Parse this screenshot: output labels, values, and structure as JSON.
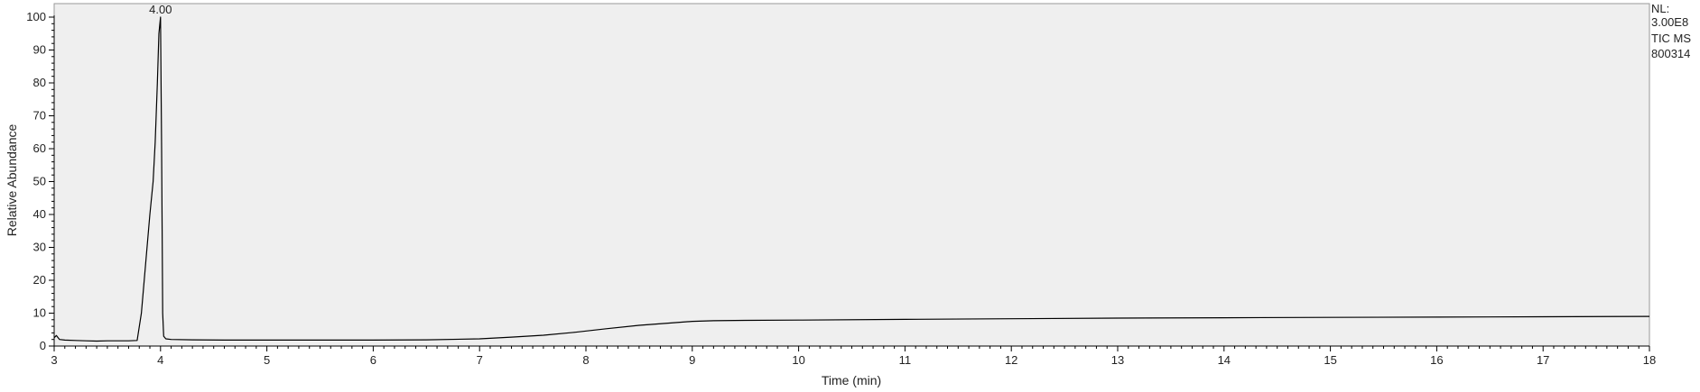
{
  "chart_data": {
    "type": "line",
    "xlabel": "Time (min)",
    "ylabel": "Relative Abundance",
    "xlim": [
      3,
      18
    ],
    "ylim": [
      0,
      100
    ],
    "x_ticks": [
      3,
      4,
      5,
      6,
      7,
      8,
      9,
      10,
      11,
      12,
      13,
      14,
      15,
      16,
      17,
      18
    ],
    "y_ticks": [
      0,
      10,
      20,
      30,
      40,
      50,
      60,
      70,
      80,
      90,
      100
    ],
    "grid": false,
    "colors": {
      "plot_background": "#efefef",
      "trace": "#000000"
    },
    "series": [
      {
        "x": [
          3.0,
          3.02,
          3.05,
          3.1,
          3.2,
          3.3,
          3.4,
          3.5,
          3.6,
          3.7,
          3.78,
          3.82,
          3.86,
          3.9,
          3.93,
          3.95,
          3.97,
          3.985,
          4.0,
          4.01,
          4.02,
          4.03,
          4.05,
          4.1,
          4.3,
          4.6,
          5.0,
          5.5,
          6.0,
          6.5,
          7.0,
          7.3,
          7.6,
          7.9,
          8.2,
          8.5,
          8.8,
          9.0,
          9.2,
          9.5,
          10.0,
          11.0,
          12.0,
          13.0,
          14.0,
          15.0,
          16.0,
          17.0,
          18.0
        ],
        "y": [
          2.5,
          3.2,
          2.0,
          1.8,
          1.7,
          1.6,
          1.5,
          1.6,
          1.6,
          1.6,
          1.7,
          10,
          25,
          40,
          50,
          62,
          80,
          95,
          100,
          60,
          10,
          3,
          2.2,
          2.0,
          1.9,
          1.8,
          1.8,
          1.8,
          1.8,
          1.9,
          2.2,
          2.7,
          3.3,
          4.2,
          5.3,
          6.3,
          7.0,
          7.5,
          7.7,
          7.8,
          7.9,
          8.1,
          8.3,
          8.5,
          8.6,
          8.7,
          8.8,
          8.9,
          9.0
        ]
      }
    ],
    "annotations": [
      {
        "x": 4.0,
        "y": 100,
        "text": "4.00"
      }
    ]
  },
  "info": {
    "line1": "NL:",
    "line2": "3.00E8",
    "line3": "TIC  MS",
    "line4": "800314"
  }
}
